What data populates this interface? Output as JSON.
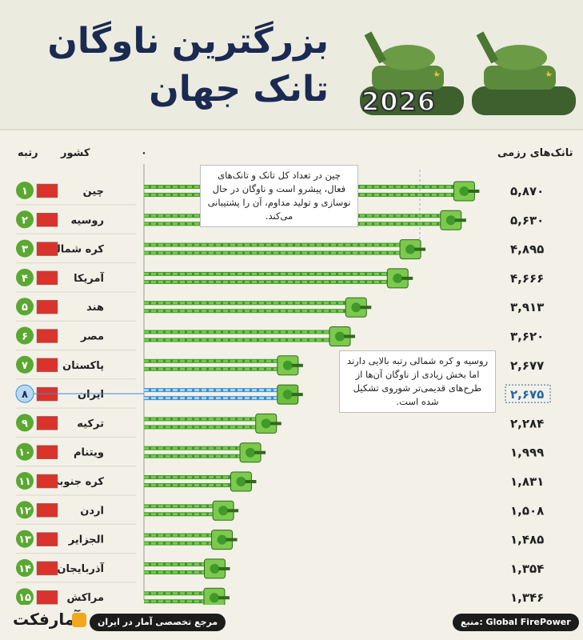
{
  "header": {
    "title_line1": "بزرگترین ناوگان",
    "title_line2": "تانک جهان",
    "year": "2026"
  },
  "columns": {
    "rank": "رتبه",
    "country": "کشور",
    "tanks": "تانک‌های رزمی",
    "zero": "۰"
  },
  "callouts": {
    "china": "چین در تعداد کل تانک و تانک‌های فعال، پیشرو است و ناوگان در حال نوسازی و تولید مداوم، آن را پشتیبانی می‌کند.",
    "russia": "روسیه و کره شمالی رتبه بالایی دارند اما بخش زیادی از ناوگان آن‌ها از طرح‌های قدیمی‌تر شوروی تشکیل شده است."
  },
  "footer": {
    "brand": "آمارفکت",
    "tagline": "مرجع تخصصی آمار در ایران",
    "source": "منبع: Global FirePower"
  },
  "colors": {
    "bar": "#3f9a2b",
    "bar_stripe": "#7cc94d",
    "highlight_bar": "#3c8ed6",
    "highlight_stripe": "#a9d5f5",
    "title": "#1a2a52",
    "badge": "#5aa832"
  },
  "chart_data": {
    "type": "bar",
    "orientation": "horizontal",
    "categories": [
      "چین",
      "روسیه",
      "کره شمالی",
      "آمریکا",
      "هند",
      "مصر",
      "پاکستان",
      "ایران",
      "ترکیه",
      "ویتنام",
      "کره جنوبی",
      "اردن",
      "الجزایر",
      "آذربایجان",
      "مراکش"
    ],
    "ranks": [
      "۱",
      "۲",
      "۳",
      "۴",
      "۵",
      "۶",
      "۷",
      "۸",
      "۹",
      "۱۰",
      "۱۱",
      "۱۲",
      "۱۳",
      "۱۴",
      "۱۵"
    ],
    "values": [
      5870,
      5630,
      4895,
      4666,
      3913,
      3620,
      2677,
      2675,
      2284,
      1999,
      1831,
      1508,
      1485,
      1354,
      1346
    ],
    "value_labels": [
      "۵,۸۷۰",
      "۵,۶۳۰",
      "۴,۸۹۵",
      "۴,۶۶۶",
      "۳,۹۱۳",
      "۳,۶۲۰",
      "۲,۶۷۷",
      "۲,۶۷۵",
      "۲,۲۸۴",
      "۱,۹۹۹",
      "۱,۸۳۱",
      "۱,۵۰۸",
      "۱,۴۸۵",
      "۱,۳۵۴",
      "۱,۳۴۶"
    ],
    "highlight": "ایران",
    "xlim": [
      0,
      6400
    ],
    "flags": [
      "china-flag",
      "russia-flag",
      "north-korea-flag",
      "usa-flag",
      "india-flag",
      "egypt-flag",
      "pakistan-flag",
      "iran-flag",
      "turkey-flag",
      "vietnam-flag",
      "south-korea-flag",
      "jordan-flag",
      "algeria-flag",
      "azerbaijan-flag",
      "morocco-flag"
    ]
  }
}
